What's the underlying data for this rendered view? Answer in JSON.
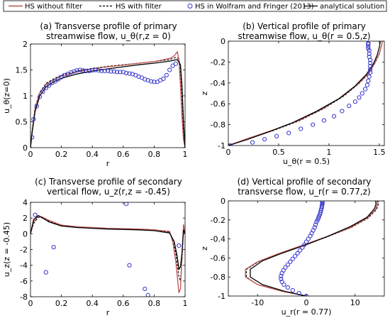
{
  "legend": {
    "placement": "top",
    "entries": [
      {
        "label": "HS without filter",
        "color": "#c0504d",
        "style": "solid"
      },
      {
        "label": "HS with filter",
        "color": "#000000",
        "style": "dashed"
      },
      {
        "label": "HS in Wolfram and Fringer (2013)",
        "color": "#3333cc",
        "style": "circle"
      },
      {
        "label": "analytical solution",
        "color": "#000000",
        "style": "solid"
      }
    ]
  },
  "chart_data": [
    {
      "type": "line",
      "panel": "a",
      "title_lines": [
        "(a)  Transverse profile of primary",
        "streamwise flow, u_θ(r,z = 0)"
      ],
      "xlabel": "r",
      "ylabel": "u_θ(z=0)",
      "xlim": [
        0,
        1
      ],
      "ylim": [
        0,
        2
      ],
      "xticks": [
        0,
        0.2,
        0.4,
        0.6,
        0.8,
        1
      ],
      "yticks": [
        0,
        0.5,
        1,
        1.5,
        2
      ],
      "xtick_labels": [
        "0",
        "0.2",
        "0.4",
        "0.6",
        "0.8",
        "1"
      ],
      "ytick_labels": [
        "0",
        "0.5",
        "1",
        "1.5",
        "2"
      ],
      "grid": false,
      "series": [
        {
          "key": "hs_nofilter",
          "x": [
            0,
            0.01,
            0.03,
            0.06,
            0.1,
            0.15,
            0.2,
            0.3,
            0.4,
            0.5,
            0.6,
            0.7,
            0.8,
            0.9,
            0.93,
            0.95,
            0.96,
            0.97,
            0.98,
            0.99,
            1.0
          ],
          "y": [
            0,
            0.3,
            0.75,
            1.05,
            1.22,
            1.31,
            1.38,
            1.46,
            1.52,
            1.56,
            1.59,
            1.63,
            1.66,
            1.72,
            1.77,
            1.85,
            1.7,
            1.2,
            0.6,
            0.15,
            0
          ]
        },
        {
          "key": "hs_filter",
          "x": [
            0,
            0.01,
            0.03,
            0.06,
            0.1,
            0.15,
            0.2,
            0.3,
            0.4,
            0.5,
            0.6,
            0.7,
            0.8,
            0.9,
            0.94,
            0.96,
            0.97,
            0.98,
            0.99,
            1.0
          ],
          "y": [
            0,
            0.32,
            0.78,
            1.07,
            1.24,
            1.33,
            1.4,
            1.48,
            1.53,
            1.57,
            1.6,
            1.63,
            1.66,
            1.7,
            1.74,
            1.72,
            1.5,
            1.0,
            0.3,
            0
          ]
        },
        {
          "key": "wf2013",
          "x": [
            0.01,
            0.02,
            0.04,
            0.06,
            0.08,
            0.1,
            0.12,
            0.14,
            0.16,
            0.18,
            0.2,
            0.22,
            0.24,
            0.26,
            0.28,
            0.3,
            0.32,
            0.34,
            0.36,
            0.38,
            0.4,
            0.42,
            0.44,
            0.46,
            0.48,
            0.5,
            0.52,
            0.54,
            0.56,
            0.58,
            0.6,
            0.62,
            0.64,
            0.66,
            0.68,
            0.7,
            0.72,
            0.74,
            0.76,
            0.78,
            0.8,
            0.82,
            0.84,
            0.86,
            0.88,
            0.9,
            0.92,
            0.94
          ],
          "y": [
            0.2,
            0.55,
            0.8,
            0.98,
            1.08,
            1.15,
            1.2,
            1.25,
            1.28,
            1.32,
            1.36,
            1.4,
            1.42,
            1.45,
            1.47,
            1.49,
            1.5,
            1.49,
            1.48,
            1.48,
            1.49,
            1.5,
            1.49,
            1.48,
            1.48,
            1.48,
            1.47,
            1.47,
            1.46,
            1.46,
            1.46,
            1.44,
            1.43,
            1.42,
            1.4,
            1.37,
            1.35,
            1.32,
            1.3,
            1.28,
            1.27,
            1.27,
            1.3,
            1.33,
            1.4,
            1.5,
            1.58,
            1.62
          ]
        },
        {
          "key": "analytical",
          "x": [
            0,
            0.01,
            0.03,
            0.06,
            0.1,
            0.15,
            0.2,
            0.3,
            0.4,
            0.5,
            0.6,
            0.7,
            0.8,
            0.9,
            0.95,
            0.97,
            0.98,
            0.99,
            1.0
          ],
          "y": [
            0,
            0.28,
            0.7,
            1.0,
            1.17,
            1.27,
            1.34,
            1.42,
            1.48,
            1.52,
            1.56,
            1.6,
            1.63,
            1.67,
            1.7,
            1.6,
            1.2,
            0.5,
            0
          ]
        }
      ]
    },
    {
      "type": "line",
      "panel": "b",
      "title_lines": [
        "(b)  Vertical profile of primary",
        "streamwise flow, u_θ(r = 0.5,z)"
      ],
      "xlabel": "u_θ(r = 0.5)",
      "ylabel": "z",
      "xlim": [
        0,
        1.55
      ],
      "ylim": [
        -1,
        0
      ],
      "xticks": [
        0,
        0.5,
        1,
        1.5
      ],
      "yticks": [
        -1,
        -0.8,
        -0.6,
        -0.4,
        -0.2,
        0
      ],
      "xtick_labels": [
        "0",
        "0.5",
        "1",
        "1.5"
      ],
      "ytick_labels": [
        "-1",
        "-0.8",
        "-0.6",
        "-0.4",
        "-0.2",
        "0"
      ],
      "grid": false,
      "series": [
        {
          "key": "hs_nofilter",
          "x": [
            0,
            0.2,
            0.45,
            0.7,
            0.95,
            1.15,
            1.3,
            1.4,
            1.46,
            1.5,
            1.52,
            1.53
          ],
          "y": [
            -1,
            -0.93,
            -0.85,
            -0.76,
            -0.64,
            -0.52,
            -0.4,
            -0.3,
            -0.2,
            -0.12,
            -0.05,
            0
          ]
        },
        {
          "key": "hs_filter",
          "x": [
            0,
            0.2,
            0.45,
            0.7,
            0.95,
            1.15,
            1.3,
            1.4,
            1.46,
            1.5,
            1.52,
            1.53
          ],
          "y": [
            -1,
            -0.935,
            -0.855,
            -0.765,
            -0.645,
            -0.525,
            -0.405,
            -0.305,
            -0.205,
            -0.125,
            -0.05,
            0
          ]
        },
        {
          "key": "wf2013",
          "x": [
            0.02,
            0.24,
            0.36,
            0.48,
            0.6,
            0.72,
            0.84,
            0.95,
            1.05,
            1.13,
            1.2,
            1.26,
            1.3,
            1.33,
            1.36,
            1.38,
            1.39,
            1.4,
            1.41,
            1.41,
            1.41,
            1.41,
            1.41,
            1.4,
            1.4,
            1.4,
            1.39,
            1.39,
            1.39,
            1.39
          ],
          "y": [
            -1,
            -0.97,
            -0.94,
            -0.91,
            -0.88,
            -0.84,
            -0.8,
            -0.76,
            -0.72,
            -0.67,
            -0.62,
            -0.58,
            -0.54,
            -0.5,
            -0.46,
            -0.42,
            -0.38,
            -0.34,
            -0.3,
            -0.27,
            -0.24,
            -0.21,
            -0.18,
            -0.15,
            -0.12,
            -0.09,
            -0.07,
            -0.05,
            -0.03,
            -0.02
          ]
        },
        {
          "key": "analytical",
          "x": [
            0,
            0.18,
            0.4,
            0.64,
            0.88,
            1.1,
            1.26,
            1.37,
            1.44,
            1.48,
            1.5,
            1.51
          ],
          "y": [
            -1,
            -0.945,
            -0.87,
            -0.78,
            -0.67,
            -0.55,
            -0.43,
            -0.32,
            -0.22,
            -0.13,
            -0.06,
            0
          ]
        }
      ]
    },
    {
      "type": "line",
      "panel": "c",
      "title_lines": [
        "(c)  Transverse profile of secondary",
        "vertical flow, u_z(r,z = -0.45)"
      ],
      "xlabel": "r",
      "ylabel": "u_z(z = -0.45)",
      "xlim": [
        0,
        1
      ],
      "ylim": [
        -8,
        4
      ],
      "xticks": [
        0,
        0.2,
        0.4,
        0.6,
        0.8,
        1
      ],
      "yticks": [
        -8,
        -6,
        -4,
        -2,
        0,
        2,
        4
      ],
      "xtick_labels": [
        "0",
        "0.2",
        "0.4",
        "0.6",
        "0.8",
        "1"
      ],
      "ytick_labels": [
        "-8",
        "-6",
        "-4",
        "-2",
        "0",
        "2",
        "4"
      ],
      "grid": false,
      "series": [
        {
          "key": "hs_nofilter",
          "x": [
            0,
            0.02,
            0.05,
            0.08,
            0.12,
            0.2,
            0.3,
            0.4,
            0.5,
            0.6,
            0.7,
            0.8,
            0.9,
            0.92,
            0.94,
            0.96,
            0.97,
            0.98,
            0.99,
            1.0
          ],
          "y": [
            0,
            1.5,
            2.3,
            2.1,
            1.7,
            1.1,
            0.9,
            0.8,
            0.7,
            0.65,
            0.6,
            0.5,
            0.3,
            -1.0,
            -3.5,
            -7.5,
            -7.0,
            -3.0,
            1.2,
            0
          ]
        },
        {
          "key": "hs_filter",
          "x": [
            0,
            0.02,
            0.05,
            0.08,
            0.12,
            0.2,
            0.3,
            0.4,
            0.5,
            0.6,
            0.7,
            0.8,
            0.9,
            0.92,
            0.94,
            0.96,
            0.97,
            0.98,
            0.99,
            1.0
          ],
          "y": [
            0,
            1.3,
            2.1,
            2.0,
            1.6,
            1.1,
            0.9,
            0.8,
            0.7,
            0.65,
            0.6,
            0.5,
            0.2,
            -0.8,
            -2.5,
            -5.5,
            -6.0,
            -3.5,
            0.5,
            0
          ]
        },
        {
          "key": "wf2013",
          "x": [
            0.03,
            0.1,
            0.15,
            0.62,
            0.64,
            0.74,
            0.76,
            0.96
          ],
          "y": [
            2.4,
            -4.9,
            -1.7,
            3.8,
            -4.0,
            -7.0,
            -7.8,
            -1.5
          ]
        },
        {
          "key": "analytical",
          "x": [
            0,
            0.02,
            0.05,
            0.08,
            0.12,
            0.2,
            0.3,
            0.4,
            0.5,
            0.6,
            0.7,
            0.8,
            0.9,
            0.93,
            0.95,
            0.96,
            0.97,
            0.98,
            0.99,
            1.0
          ],
          "y": [
            0,
            1.8,
            2.3,
            2.0,
            1.5,
            1.0,
            0.8,
            0.7,
            0.6,
            0.55,
            0.5,
            0.4,
            0.1,
            -1.0,
            -3.0,
            -4.5,
            -4.2,
            -2.5,
            0.5,
            0
          ]
        }
      ]
    },
    {
      "type": "line",
      "panel": "d",
      "title_lines": [
        "(d)  Vertical profile of secondary",
        "transverse flow, u_r(r = 0.77,z)"
      ],
      "xlabel": "u_r(r = 0.77)",
      "ylabel": "z",
      "xlim": [
        -16,
        16
      ],
      "ylim": [
        -1,
        0
      ],
      "xticks": [
        -10,
        0,
        10
      ],
      "yticks": [
        -1,
        -0.8,
        -0.6,
        -0.4,
        -0.2,
        0
      ],
      "xtick_labels": [
        "-10",
        "0",
        "10"
      ],
      "ytick_labels": [
        "-1",
        "-0.8",
        "-0.6",
        "-0.4",
        "-0.2",
        "0"
      ],
      "grid": false,
      "series": [
        {
          "key": "hs_nofilter",
          "x": [
            0,
            -5,
            -10,
            -12.5,
            -12.5,
            -10,
            -6,
            -1,
            4,
            9,
            12.5,
            14.2,
            14.6,
            14.5
          ],
          "y": [
            -1,
            -0.95,
            -0.88,
            -0.8,
            -0.72,
            -0.64,
            -0.56,
            -0.47,
            -0.38,
            -0.28,
            -0.18,
            -0.09,
            -0.03,
            0
          ]
        },
        {
          "key": "hs_filter",
          "x": [
            0,
            -5,
            -10,
            -12.3,
            -12.3,
            -9.8,
            -5.8,
            -0.8,
            4.2,
            9.2,
            12.7,
            14.4,
            14.8,
            14.7
          ],
          "y": [
            -1,
            -0.95,
            -0.88,
            -0.8,
            -0.72,
            -0.64,
            -0.56,
            -0.47,
            -0.38,
            -0.28,
            -0.18,
            -0.09,
            -0.03,
            0
          ]
        },
        {
          "key": "wf2013",
          "x": [
            0,
            -1.5,
            -2.8,
            -3.8,
            -4.6,
            -5.0,
            -5.2,
            -5.2,
            -5.0,
            -4.7,
            -4.3,
            -3.8,
            -3.3,
            -2.8,
            -2.3,
            -1.8,
            -1.3,
            -0.8,
            -0.4,
            0,
            0.4,
            0.8,
            1.1,
            1.4,
            1.7,
            1.9,
            2.1,
            2.3,
            2.5,
            2.6,
            2.8,
            2.9,
            3.0,
            3.1,
            3.2,
            3.2,
            3.3,
            3.3,
            3.3
          ],
          "y": [
            -1,
            -0.97,
            -0.94,
            -0.91,
            -0.88,
            -0.85,
            -0.82,
            -0.79,
            -0.76,
            -0.73,
            -0.7,
            -0.67,
            -0.64,
            -0.61,
            -0.58,
            -0.55,
            -0.52,
            -0.49,
            -0.46,
            -0.43,
            -0.4,
            -0.37,
            -0.34,
            -0.31,
            -0.28,
            -0.25,
            -0.22,
            -0.2,
            -0.18,
            -0.16,
            -0.14,
            -0.12,
            -0.1,
            -0.08,
            -0.06,
            -0.045,
            -0.03,
            -0.015,
            0
          ]
        },
        {
          "key": "analytical",
          "x": [
            0,
            -4.5,
            -9,
            -11.5,
            -11.5,
            -9,
            -5,
            0,
            4.5,
            9,
            12.5,
            14,
            14.3,
            14.2
          ],
          "y": [
            -1,
            -0.95,
            -0.88,
            -0.8,
            -0.72,
            -0.63,
            -0.55,
            -0.46,
            -0.37,
            -0.27,
            -0.17,
            -0.08,
            -0.03,
            0
          ]
        }
      ]
    }
  ]
}
